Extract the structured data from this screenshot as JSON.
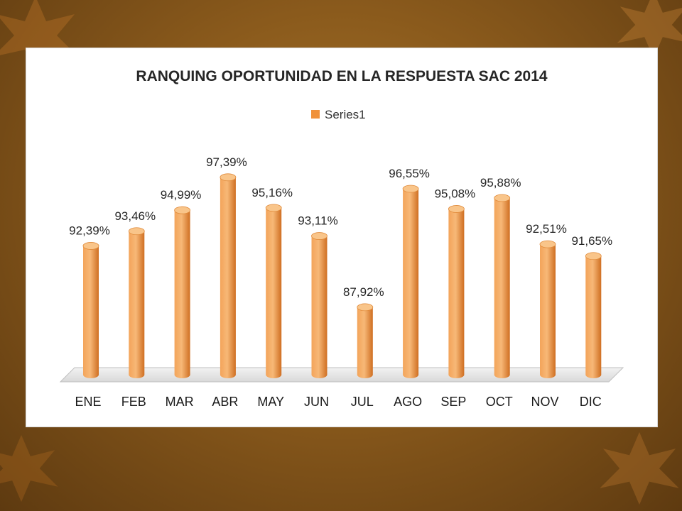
{
  "colors": {
    "bar_light": "#f6b06a",
    "bar_mid": "#f0913a",
    "bar_dark": "#c8671c",
    "bar_top": "#f9c58a",
    "background": "#8a5a1c"
  },
  "chart_data": {
    "type": "bar",
    "title": "RANQUING OPORTUNIDAD EN LA RESPUESTA SAC 2014",
    "legend_position": "top",
    "categories": [
      "ENE",
      "FEB",
      "MAR",
      "ABR",
      "MAY",
      "JUN",
      "JUL",
      "AGO",
      "SEP",
      "OCT",
      "NOV",
      "DIC"
    ],
    "series": [
      {
        "name": "Series1",
        "values": [
          92.39,
          93.46,
          94.99,
          97.39,
          95.16,
          93.11,
          87.92,
          96.55,
          95.08,
          95.88,
          92.51,
          91.65
        ],
        "labels": [
          "92,39%",
          "93,46%",
          "94,99%",
          "97,39%",
          "95,16%",
          "93,11%",
          "87,92%",
          "96,55%",
          "95,08%",
          "95,88%",
          "92,51%",
          "91,65%"
        ]
      }
    ],
    "ylim": [
      83,
      98
    ],
    "grid": false
  }
}
